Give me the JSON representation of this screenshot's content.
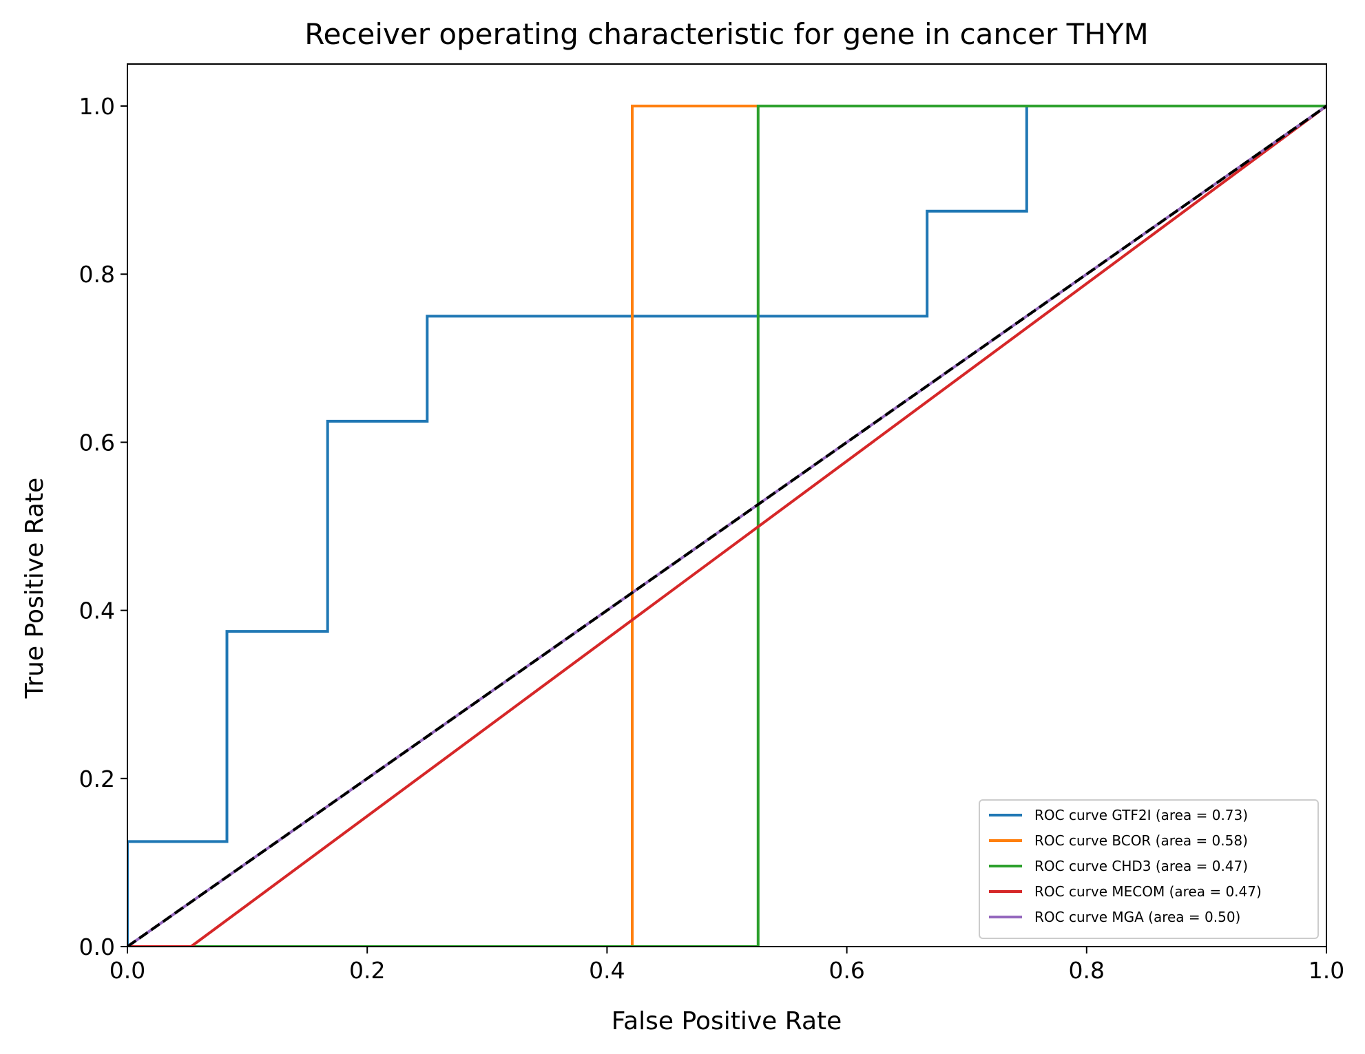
{
  "chart_data": {
    "type": "line",
    "title": "Receiver operating characteristic for gene in cancer THYM",
    "xlabel": "False Positive Rate",
    "ylabel": "True Positive Rate",
    "xlim": [
      0.0,
      1.0
    ],
    "ylim": [
      0.0,
      1.05
    ],
    "xticks": [
      0.0,
      0.2,
      0.4,
      0.6,
      0.8,
      1.0
    ],
    "xtick_labels": [
      "0.0",
      "0.2",
      "0.4",
      "0.6",
      "0.8",
      "1.0"
    ],
    "yticks": [
      0.0,
      0.2,
      0.4,
      0.6,
      0.8,
      1.0
    ],
    "ytick_labels": [
      "0.0",
      "0.2",
      "0.4",
      "0.6",
      "0.8",
      "1.0"
    ],
    "grid": false,
    "legend_position": "lower right",
    "series": [
      {
        "name": "ROC curve GTF2I (area = 0.73)",
        "color": "#1f77b4",
        "x": [
          0.0,
          0.0,
          0.083,
          0.083,
          0.167,
          0.167,
          0.25,
          0.25,
          0.667,
          0.667,
          0.75,
          0.75,
          1.0
        ],
        "y": [
          0.0,
          0.125,
          0.125,
          0.375,
          0.375,
          0.625,
          0.625,
          0.75,
          0.75,
          0.875,
          0.875,
          1.0,
          1.0
        ]
      },
      {
        "name": "ROC curve BCOR (area = 0.58)",
        "color": "#ff7f0e",
        "x": [
          0.0,
          0.421,
          0.421,
          1.0
        ],
        "y": [
          0.0,
          0.0,
          1.0,
          1.0
        ]
      },
      {
        "name": "ROC curve CHD3 (area = 0.47)",
        "color": "#2ca02c",
        "x": [
          0.0,
          0.526,
          0.526,
          1.0
        ],
        "y": [
          0.0,
          0.0,
          1.0,
          1.0
        ]
      },
      {
        "name": "ROC curve MECOM (area = 0.47)",
        "color": "#d62728",
        "x": [
          0.0,
          0.053,
          1.0
        ],
        "y": [
          0.0,
          0.0,
          1.0
        ]
      },
      {
        "name": "ROC curve MGA (area = 0.50)",
        "color": "#9467bd",
        "x": [
          0.0,
          1.0
        ],
        "y": [
          0.0,
          1.0
        ]
      }
    ],
    "reference_line": {
      "x": [
        0.0,
        1.0
      ],
      "y": [
        0.0,
        1.0
      ],
      "color": "#000000",
      "style": "dashed"
    }
  }
}
